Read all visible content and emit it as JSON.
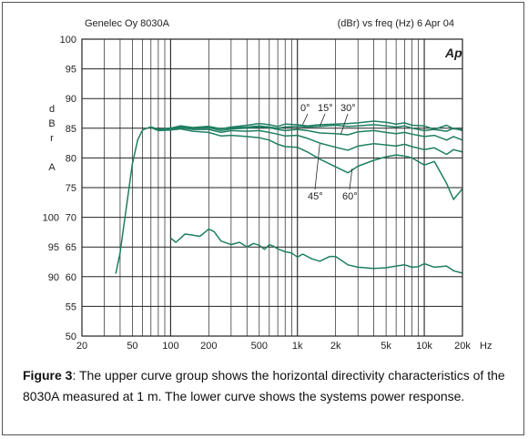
{
  "header": {
    "left": "Genelec Oy 8030A",
    "right": "(dBr) vs freq (Hz) 6 Apr 04",
    "brand": "Ap"
  },
  "caption": {
    "label": "Figure 3",
    "text": ": The upper curve group shows the horizontal directivity characteristics of the 8030A measured at 1 m. The lower curve shows the systems power response."
  },
  "chart_data": {
    "type": "line",
    "x_scale": "log",
    "xlim": [
      20,
      20000
    ],
    "ylim": [
      50,
      100
    ],
    "grid": true,
    "colors": {
      "curve": "#1e7f62",
      "grid": "#222222"
    },
    "x_tick_labels": [
      {
        "x": 20,
        "label": "20"
      },
      {
        "x": 50,
        "label": "50"
      },
      {
        "x": 100,
        "label": "100"
      },
      {
        "x": 200,
        "label": "200"
      },
      {
        "x": 500,
        "label": "500"
      },
      {
        "x": 1000,
        "label": "1k"
      },
      {
        "x": 2000,
        "label": "2k"
      },
      {
        "x": 5000,
        "label": "5k"
      },
      {
        "x": 10000,
        "label": "10k"
      },
      {
        "x": 20000,
        "label": "20k"
      }
    ],
    "x_unit": "Hz",
    "y_ticks": [
      50,
      55,
      60,
      65,
      70,
      75,
      80,
      85,
      90,
      95,
      100
    ],
    "y2_ticks": [
      {
        "y": 60,
        "label": "90"
      },
      {
        "y": 65,
        "label": "95"
      },
      {
        "y": 70,
        "label": "100"
      }
    ],
    "ylabel": [
      "d",
      "B",
      "r",
      "",
      "A"
    ],
    "series": [
      {
        "name": "0°",
        "x": [
          37,
          40,
          45,
          50,
          55,
          60,
          65,
          70,
          80,
          100,
          120,
          150,
          200,
          250,
          300,
          400,
          500,
          600,
          700,
          800,
          1000,
          1200,
          1500,
          2000,
          2500,
          3000,
          4000,
          5000,
          6000,
          7000,
          8000,
          10000,
          12000,
          15000,
          17000,
          20000
        ],
        "y": [
          60.5,
          64,
          72,
          79,
          83,
          84.7,
          85,
          85.2,
          84.8,
          85,
          85.4,
          85.1,
          85.3,
          84.9,
          85.2,
          85.5,
          85.8,
          85.6,
          85.3,
          85.7,
          85.6,
          85.4,
          85.6,
          85.7,
          85.8,
          85.9,
          86.2,
          86,
          85.7,
          85.9,
          85.5,
          85.4,
          84.8,
          85.5,
          84.9,
          84.8
        ]
      },
      {
        "name": "15°",
        "x": [
          70,
          80,
          100,
          120,
          150,
          200,
          250,
          300,
          400,
          500,
          600,
          700,
          800,
          1000,
          1200,
          1500,
          2000,
          2500,
          3000,
          4000,
          5000,
          6000,
          7000,
          8000,
          10000,
          12000,
          15000,
          17000,
          20000
        ],
        "y": [
          85.2,
          84.8,
          85,
          85.4,
          85.1,
          85.3,
          84.9,
          85.1,
          85.2,
          85.4,
          85.2,
          85,
          85.2,
          85.3,
          85.2,
          85.3,
          85.5,
          85.3,
          85.4,
          85.6,
          85.4,
          85.2,
          85.4,
          85,
          84.6,
          84.8,
          84.5,
          85,
          84.6
        ]
      },
      {
        "name": "30°",
        "x": [
          70,
          80,
          100,
          120,
          150,
          200,
          250,
          300,
          400,
          500,
          600,
          700,
          800,
          1000,
          1200,
          1500,
          2000,
          2500,
          3000,
          4000,
          5000,
          6000,
          7000,
          8000,
          10000,
          12000,
          15000,
          17000,
          20000
        ],
        "y": [
          85.2,
          84.8,
          85,
          85.3,
          85,
          85.1,
          84.6,
          84.9,
          85,
          85.2,
          85.1,
          84.8,
          84.6,
          84.8,
          84.6,
          84.2,
          84.1,
          83.9,
          84.4,
          84.6,
          84.3,
          84.1,
          84.3,
          84,
          83.6,
          83.8,
          83,
          83.6,
          83
        ]
      },
      {
        "name": "45°",
        "x": [
          70,
          80,
          100,
          120,
          150,
          200,
          250,
          300,
          400,
          500,
          600,
          700,
          800,
          1000,
          1200,
          1500,
          2000,
          2500,
          3000,
          4000,
          5000,
          6000,
          7000,
          8000,
          10000,
          12000,
          15000,
          17000,
          20000
        ],
        "y": [
          85.2,
          84.7,
          84.9,
          85.1,
          84.8,
          84.8,
          84.3,
          84.6,
          84.5,
          84.6,
          84.3,
          84,
          83.7,
          83.8,
          83.3,
          82.5,
          81.8,
          81.3,
          82,
          82.4,
          82.2,
          82,
          82.3,
          81.9,
          81.4,
          81.7,
          80.6,
          81.4,
          81
        ]
      },
      {
        "name": "60°",
        "x": [
          70,
          80,
          100,
          120,
          150,
          200,
          250,
          300,
          400,
          500,
          600,
          700,
          800,
          1000,
          1200,
          1500,
          2000,
          2500,
          3000,
          4000,
          5000,
          6000,
          7000,
          8000,
          10000,
          12000,
          15000,
          17000,
          20000
        ],
        "y": [
          85.1,
          84.6,
          84.7,
          84.9,
          84.5,
          84.3,
          83.7,
          83.8,
          83.6,
          83.4,
          83,
          82.3,
          81.9,
          81.8,
          81,
          79.8,
          78.5,
          77.5,
          78.6,
          79.6,
          80.2,
          80.5,
          80.3,
          80,
          78.8,
          79.4,
          75.7,
          73,
          74.8
        ]
      },
      {
        "name": "",
        "x": [
          100,
          110,
          120,
          130,
          150,
          170,
          200,
          220,
          250,
          300,
          350,
          400,
          450,
          500,
          550,
          600,
          650,
          700,
          800,
          900,
          1000,
          1100,
          1300,
          1500,
          1800,
          2000,
          2500,
          3000,
          4000,
          5000,
          6000,
          7000,
          8000,
          9000,
          10000,
          12000,
          15000,
          17000,
          20000
        ],
        "y": [
          66.5,
          65.8,
          66.5,
          67.2,
          67,
          66.8,
          68,
          67.6,
          66,
          65.4,
          65.8,
          65,
          65.6,
          65.3,
          64.6,
          65.4,
          65.1,
          64.7,
          64.2,
          64,
          63.3,
          63.8,
          63,
          62.6,
          63.4,
          63.4,
          62,
          61.6,
          61.4,
          61.5,
          61.8,
          62,
          61.6,
          61.7,
          62.2,
          61.6,
          61.8,
          61,
          60.6
        ]
      }
    ]
  }
}
